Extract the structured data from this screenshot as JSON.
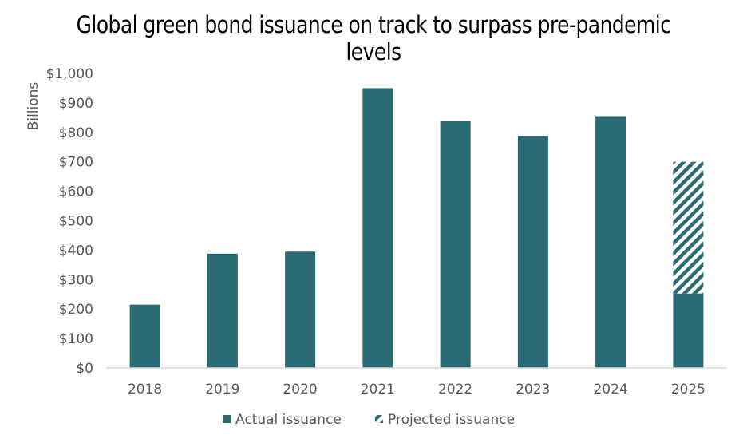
{
  "chart_data": {
    "type": "bar",
    "title": "Global green bond issuance on track to surpass pre-pandemic levels",
    "ylabel": "Billions",
    "xlabel": "",
    "categories": [
      "2018",
      "2019",
      "2020",
      "2021",
      "2022",
      "2023",
      "2024",
      "2025"
    ],
    "series": [
      {
        "name": "Actual issuance",
        "values": [
          215,
          388,
          395,
          950,
          838,
          787,
          855,
          253
        ]
      },
      {
        "name": "Projected issuance",
        "values": [
          0,
          0,
          0,
          0,
          0,
          0,
          0,
          447
        ]
      }
    ],
    "stacked": true,
    "ylim": [
      0,
      1000
    ],
    "yticks": [
      "$0",
      "$100",
      "$200",
      "$300",
      "$400",
      "$500",
      "$600",
      "$700",
      "$800",
      "$900",
      "$1,000"
    ],
    "grid": false,
    "legend": "bottom",
    "colors": {
      "actual": "#2a6a72",
      "projected": "#2a6a72",
      "axis": "#d9d9d9"
    }
  }
}
